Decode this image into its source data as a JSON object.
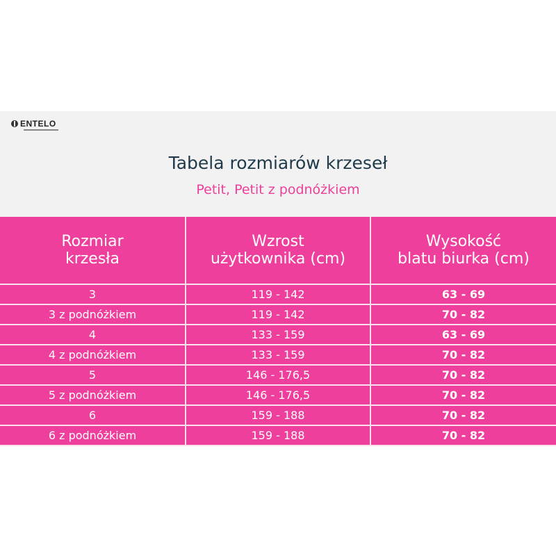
{
  "logo": {
    "text": "ENTELO"
  },
  "title": "Tabela rozmiarów krzeseł",
  "subtitle": "Petit, Petit z podnóżkiem",
  "colors": {
    "accent": "#ee3f9c",
    "band": "#f2f2f2",
    "title": "#1f3a4a"
  },
  "table": {
    "headers": [
      [
        "Rozmiar",
        "krzesła"
      ],
      [
        "Wzrost",
        "użytkownika (cm)"
      ],
      [
        "Wysokość",
        "blatu biurka (cm)"
      ]
    ],
    "rows": [
      [
        "3",
        "119 - 142",
        "63 - 69"
      ],
      [
        "3 z podnóżkiem",
        "119 - 142",
        "70 - 82"
      ],
      [
        "4",
        "133 - 159",
        "63 - 69"
      ],
      [
        "4 z podnóżkiem",
        "133 - 159",
        "70 - 82"
      ],
      [
        "5",
        "146 - 176,5",
        "70 - 82"
      ],
      [
        "5 z podnóżkiem",
        "146 - 176,5",
        "70 - 82"
      ],
      [
        "6",
        "159 - 188",
        "70 - 82"
      ],
      [
        "6 z podnóżkiem",
        "159 - 188",
        "70 - 82"
      ]
    ]
  }
}
